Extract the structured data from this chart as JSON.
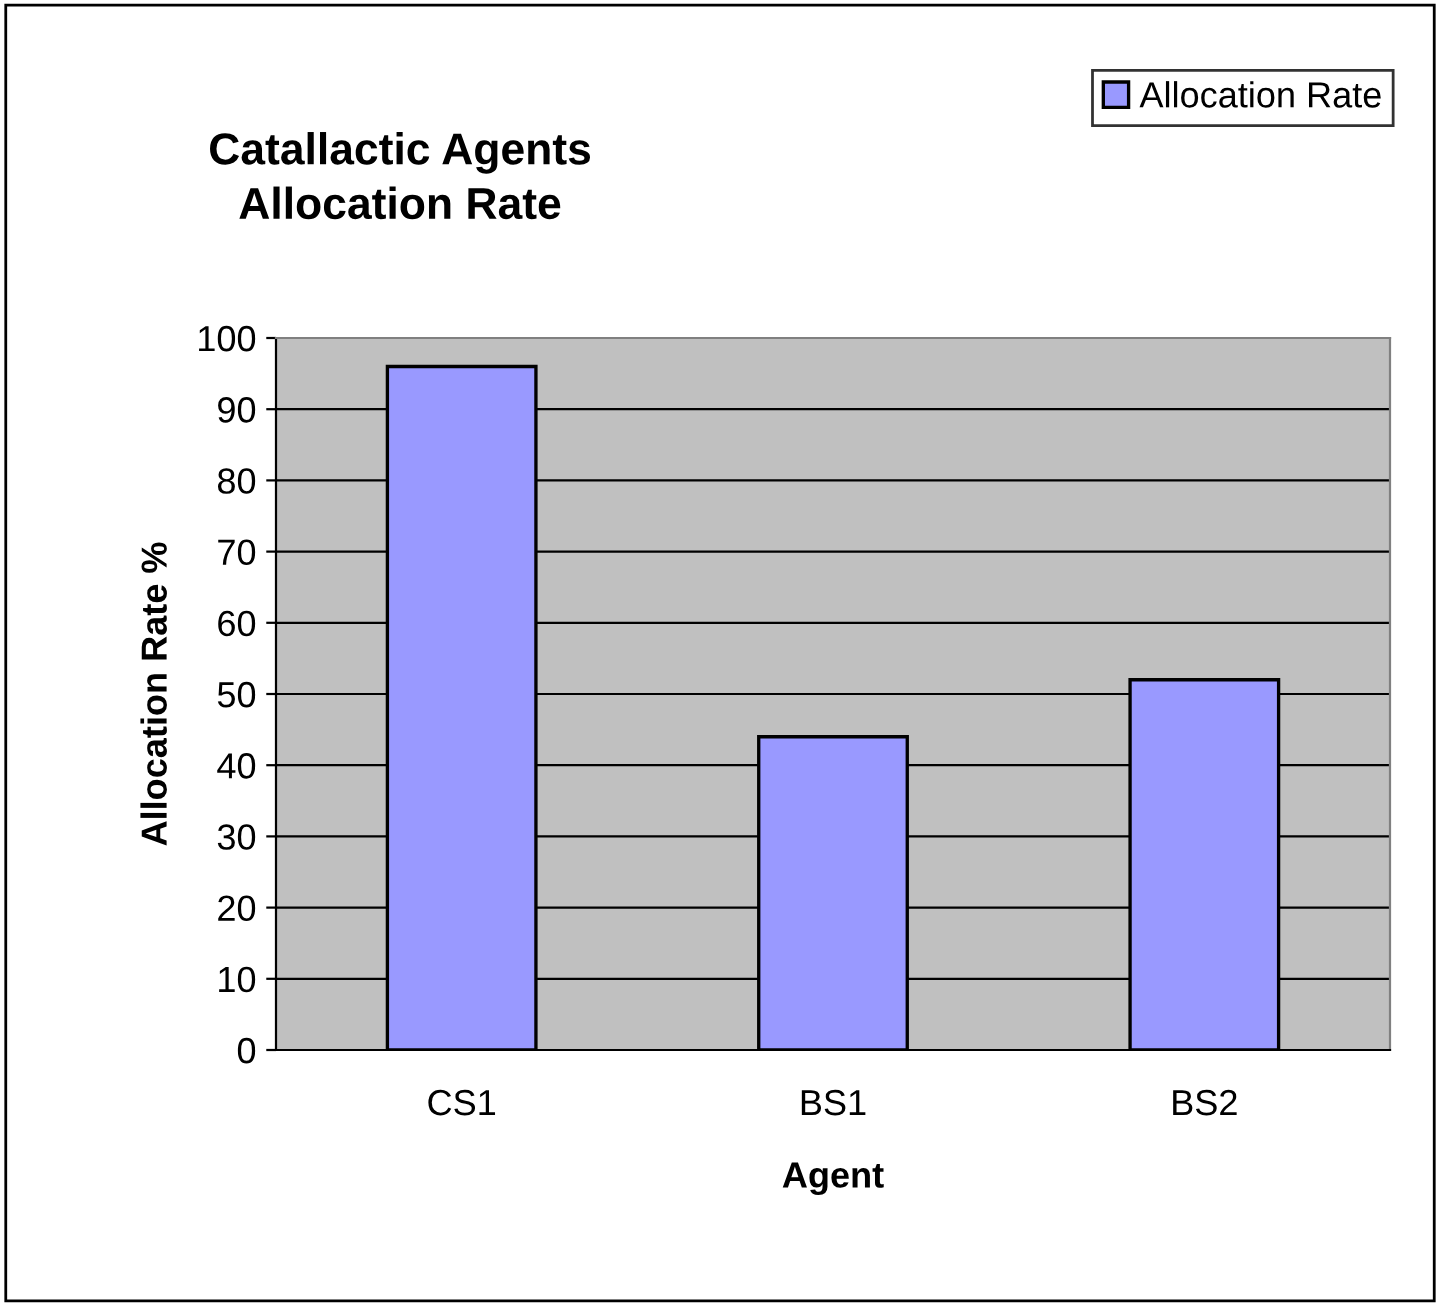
{
  "chart_data": {
    "type": "bar",
    "title": "Catallactic Agents\nAllocation Rate",
    "xlabel": "Agent",
    "ylabel": "Allocation Rate %",
    "categories": [
      "CS1",
      "BS1",
      "BS2"
    ],
    "series": [
      {
        "name": "Allocation Rate",
        "color": "#9999ff",
        "values": [
          96,
          44,
          52
        ]
      }
    ],
    "ylim": [
      0,
      100
    ],
    "yticks": [
      0,
      10,
      20,
      30,
      40,
      50,
      60,
      70,
      80,
      90,
      100
    ],
    "grid": "y",
    "legend": "top right"
  }
}
